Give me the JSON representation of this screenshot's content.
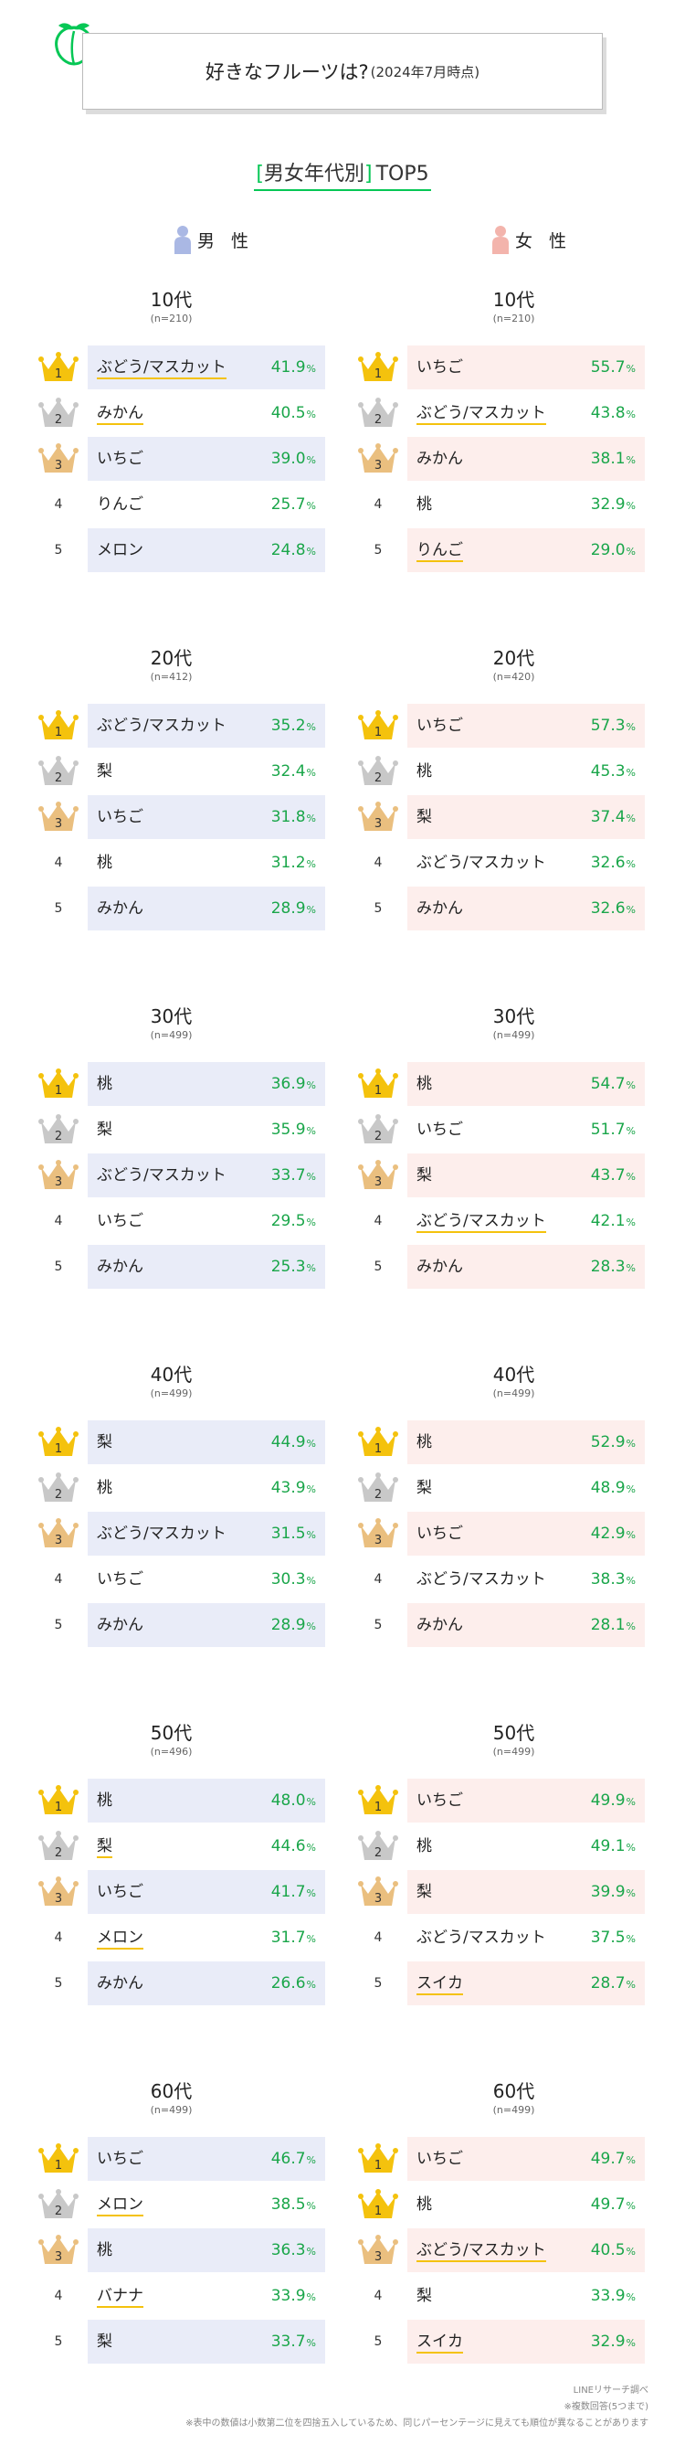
{
  "title": {
    "main": "好きなフルーツは?",
    "sub": "(2024年7月時点)"
  },
  "subtitle": {
    "open": "[",
    "text": "男女年代別",
    "close": "]",
    "tail": "TOP5"
  },
  "genders": {
    "male": "男 性",
    "female": "女 性"
  },
  "colors": {
    "male_bg": "#e9ecf8",
    "female_bg": "#fdeeec",
    "pct": "#1aa64a",
    "underline": "#f4c20d",
    "gold": "#f4c20d",
    "silver": "#c8c8c8",
    "bronze": "#eabf7f",
    "male_icon": "#aab8e4",
    "female_icon": "#f3b4ac"
  },
  "chart_data": {
    "type": "table",
    "title": "好きなフルーツは?(2024年7月時点)",
    "unit": "%",
    "groups": [
      {
        "age": "10代",
        "male": {
          "n": "(n=210)",
          "rows": [
            {
              "rank": 1,
              "name": "ぶどう/マスカット",
              "value": "41.9",
              "u": true
            },
            {
              "rank": 2,
              "name": "みかん",
              "value": "40.5",
              "u": true
            },
            {
              "rank": 3,
              "name": "いちご",
              "value": "39.0",
              "u": false
            },
            {
              "rank": 4,
              "name": "りんご",
              "value": "25.7",
              "u": false
            },
            {
              "rank": 5,
              "name": "メロン",
              "value": "24.8",
              "u": false
            }
          ]
        },
        "female": {
          "n": "(n=210)",
          "rows": [
            {
              "rank": 1,
              "name": "いちご",
              "value": "55.7",
              "u": false
            },
            {
              "rank": 2,
              "name": "ぶどう/マスカット",
              "value": "43.8",
              "u": true
            },
            {
              "rank": 3,
              "name": "みかん",
              "value": "38.1",
              "u": false
            },
            {
              "rank": 4,
              "name": "桃",
              "value": "32.9",
              "u": false
            },
            {
              "rank": 5,
              "name": "りんご",
              "value": "29.0",
              "u": true
            }
          ]
        }
      },
      {
        "age": "20代",
        "male": {
          "n": "(n=412)",
          "rows": [
            {
              "rank": 1,
              "name": "ぶどう/マスカット",
              "value": "35.2",
              "u": false
            },
            {
              "rank": 2,
              "name": "梨",
              "value": "32.4",
              "u": false
            },
            {
              "rank": 3,
              "name": "いちご",
              "value": "31.8",
              "u": false
            },
            {
              "rank": 4,
              "name": "桃",
              "value": "31.2",
              "u": false
            },
            {
              "rank": 5,
              "name": "みかん",
              "value": "28.9",
              "u": false
            }
          ]
        },
        "female": {
          "n": "(n=420)",
          "rows": [
            {
              "rank": 1,
              "name": "いちご",
              "value": "57.3",
              "u": false
            },
            {
              "rank": 2,
              "name": "桃",
              "value": "45.3",
              "u": false
            },
            {
              "rank": 3,
              "name": "梨",
              "value": "37.4",
              "u": false
            },
            {
              "rank": 4,
              "name": "ぶどう/マスカット",
              "value": "32.6",
              "u": false
            },
            {
              "rank": 5,
              "name": "みかん",
              "value": "32.6",
              "u": false
            }
          ]
        }
      },
      {
        "age": "30代",
        "male": {
          "n": "(n=499)",
          "rows": [
            {
              "rank": 1,
              "name": "桃",
              "value": "36.9",
              "u": false
            },
            {
              "rank": 2,
              "name": "梨",
              "value": "35.9",
              "u": false
            },
            {
              "rank": 3,
              "name": "ぶどう/マスカット",
              "value": "33.7",
              "u": false
            },
            {
              "rank": 4,
              "name": "いちご",
              "value": "29.5",
              "u": false
            },
            {
              "rank": 5,
              "name": "みかん",
              "value": "25.3",
              "u": false
            }
          ]
        },
        "female": {
          "n": "(n=499)",
          "rows": [
            {
              "rank": 1,
              "name": "桃",
              "value": "54.7",
              "u": false
            },
            {
              "rank": 2,
              "name": "いちご",
              "value": "51.7",
              "u": false
            },
            {
              "rank": 3,
              "name": "梨",
              "value": "43.7",
              "u": false
            },
            {
              "rank": 4,
              "name": "ぶどう/マスカット",
              "value": "42.1",
              "u": true
            },
            {
              "rank": 5,
              "name": "みかん",
              "value": "28.3",
              "u": false
            }
          ]
        }
      },
      {
        "age": "40代",
        "male": {
          "n": "(n=499)",
          "rows": [
            {
              "rank": 1,
              "name": "梨",
              "value": "44.9",
              "u": false
            },
            {
              "rank": 2,
              "name": "桃",
              "value": "43.9",
              "u": false
            },
            {
              "rank": 3,
              "name": "ぶどう/マスカット",
              "value": "31.5",
              "u": false
            },
            {
              "rank": 4,
              "name": "いちご",
              "value": "30.3",
              "u": false
            },
            {
              "rank": 5,
              "name": "みかん",
              "value": "28.9",
              "u": false
            }
          ]
        },
        "female": {
          "n": "(n=499)",
          "rows": [
            {
              "rank": 1,
              "name": "桃",
              "value": "52.9",
              "u": false
            },
            {
              "rank": 2,
              "name": "梨",
              "value": "48.9",
              "u": false
            },
            {
              "rank": 3,
              "name": "いちご",
              "value": "42.9",
              "u": false
            },
            {
              "rank": 4,
              "name": "ぶどう/マスカット",
              "value": "38.3",
              "u": false
            },
            {
              "rank": 5,
              "name": "みかん",
              "value": "28.1",
              "u": false
            }
          ]
        }
      },
      {
        "age": "50代",
        "male": {
          "n": "(n=496)",
          "rows": [
            {
              "rank": 1,
              "name": "桃",
              "value": "48.0",
              "u": false
            },
            {
              "rank": 2,
              "name": "梨",
              "value": "44.6",
              "u": true
            },
            {
              "rank": 3,
              "name": "いちご",
              "value": "41.7",
              "u": false
            },
            {
              "rank": 4,
              "name": "メロン",
              "value": "31.7",
              "u": true
            },
            {
              "rank": 5,
              "name": "みかん",
              "value": "26.6",
              "u": false
            }
          ]
        },
        "female": {
          "n": "(n=499)",
          "rows": [
            {
              "rank": 1,
              "name": "いちご",
              "value": "49.9",
              "u": false
            },
            {
              "rank": 2,
              "name": "桃",
              "value": "49.1",
              "u": false
            },
            {
              "rank": 3,
              "name": "梨",
              "value": "39.9",
              "u": false
            },
            {
              "rank": 4,
              "name": "ぶどう/マスカット",
              "value": "37.5",
              "u": false
            },
            {
              "rank": 5,
              "name": "スイカ",
              "value": "28.7",
              "u": true
            }
          ]
        }
      },
      {
        "age": "60代",
        "male": {
          "n": "(n=499)",
          "rows": [
            {
              "rank": 1,
              "name": "いちご",
              "value": "46.7",
              "u": false
            },
            {
              "rank": 2,
              "name": "メロン",
              "value": "38.5",
              "u": true
            },
            {
              "rank": 3,
              "name": "桃",
              "value": "36.3",
              "u": false
            },
            {
              "rank": 4,
              "name": "バナナ",
              "value": "33.9",
              "u": true
            },
            {
              "rank": 5,
              "name": "梨",
              "value": "33.7",
              "u": false
            }
          ]
        },
        "female": {
          "n": "(n=499)",
          "rows": [
            {
              "rank": 1,
              "name": "いちご",
              "value": "49.7",
              "u": false
            },
            {
              "rank": 1,
              "name": "桃",
              "value": "49.7",
              "u": false
            },
            {
              "rank": 3,
              "name": "ぶどう/マスカット",
              "value": "40.5",
              "u": true
            },
            {
              "rank": 4,
              "name": "梨",
              "value": "33.9",
              "u": false
            },
            {
              "rank": 5,
              "name": "スイカ",
              "value": "32.9",
              "u": true
            }
          ]
        }
      }
    ]
  },
  "footer": {
    "source": "LINEリサーチ調べ",
    "note1": "※複数回答(5つまで)",
    "note2": "※表中の数値は小数第二位を四捨五入しているため、同じパーセンテージに見えても順位が異なることがあります"
  }
}
